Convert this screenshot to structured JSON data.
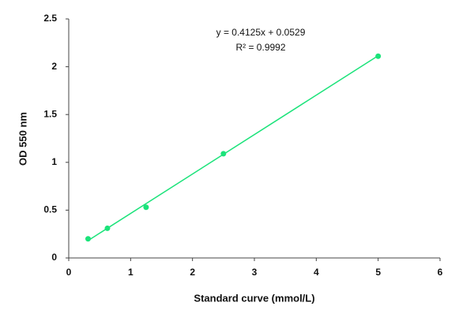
{
  "chart_data": {
    "type": "scatter",
    "xlabel": "Standard curve (mmol/L)",
    "ylabel": "OD 550 nm",
    "annotations": [
      "y = 0.4125x + 0.0529",
      "R² = 0.9992"
    ],
    "series": [
      {
        "color": "#1be37a",
        "x": [
          0.3125,
          0.625,
          1.25,
          2.5,
          5
        ],
        "values": [
          0.2,
          0.31,
          0.53,
          1.09,
          2.11
        ]
      }
    ],
    "trendline": {
      "slope": 0.4125,
      "intercept": 0.0529
    },
    "xlim": [
      0,
      6
    ],
    "xticks": [
      0,
      1,
      2,
      3,
      4,
      5,
      6
    ],
    "ylim": [
      0,
      2.5
    ],
    "yticks": [
      0,
      0.5,
      1,
      1.5,
      2,
      2.5
    ],
    "grid": false
  }
}
